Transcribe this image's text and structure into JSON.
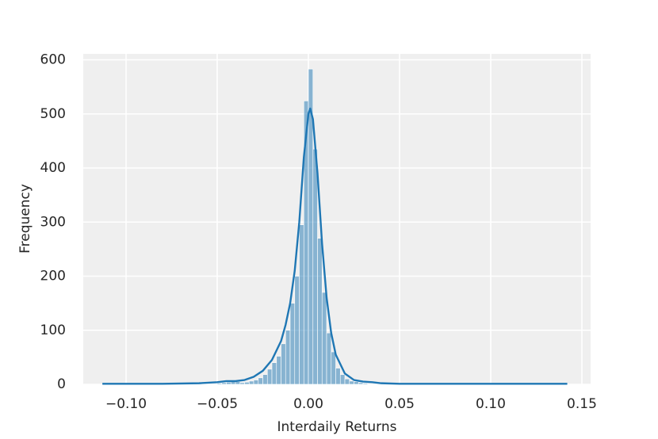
{
  "chart_data": {
    "type": "histogram",
    "xlabel": "Interdaily Returns",
    "ylabel": "Frequency",
    "bins": [
      -0.1125,
      -0.11,
      -0.1075,
      -0.105,
      -0.1025,
      -0.1,
      -0.0975,
      -0.095,
      -0.0925,
      -0.09,
      -0.0875,
      -0.085,
      -0.0825,
      -0.08,
      -0.0775,
      -0.075,
      -0.0725,
      -0.07,
      -0.0675,
      -0.065,
      -0.0625,
      -0.06,
      -0.0575,
      -0.055,
      -0.0525,
      -0.05,
      -0.0475,
      -0.045,
      -0.0425,
      -0.04,
      -0.0375,
      -0.035,
      -0.0325,
      -0.03,
      -0.0275,
      -0.025,
      -0.0225,
      -0.02,
      -0.0175,
      -0.015,
      -0.0125,
      -0.01,
      -0.0075,
      -0.005,
      -0.0025,
      0,
      0.0025,
      0.005,
      0.0075,
      0.01,
      0.0125,
      0.015,
      0.0175,
      0.02,
      0.0225,
      0.025,
      0.0275,
      0.03,
      0.0325,
      0.035,
      0.0375,
      0.04,
      0.0425,
      0.045,
      0.0475,
      0.05,
      0.0525,
      0.055,
      0.0575,
      0.06,
      0.0625,
      0.065,
      0.0675,
      0.07,
      0.0725,
      0.075,
      0.0775,
      0.08,
      0.0825,
      0.085,
      0.0875,
      0.09,
      0.0925,
      0.095,
      0.0975,
      0.1,
      0.1025,
      0.105,
      0.1075,
      0.11,
      0.1125,
      0.115,
      0.1175,
      0.12,
      0.1225,
      0.125,
      0.1275,
      0.13,
      0.1325,
      0.135,
      0.1375,
      0.14,
      0.1425
    ],
    "counts": [
      1,
      0,
      0,
      0,
      0,
      0,
      0,
      0,
      0,
      0,
      0,
      0,
      0,
      0,
      0,
      0,
      0,
      0,
      1,
      0,
      0,
      0,
      0,
      0,
      1,
      2,
      3,
      4,
      6,
      5,
      3,
      4,
      6,
      8,
      12,
      18,
      28,
      40,
      52,
      75,
      100,
      150,
      200,
      295,
      524,
      583,
      435,
      270,
      170,
      95,
      60,
      30,
      18,
      10,
      6,
      5,
      3,
      2,
      1,
      0,
      0,
      0,
      0,
      0,
      0,
      0,
      0,
      0,
      0,
      0,
      1,
      0,
      0,
      0,
      0,
      0,
      0,
      0,
      0,
      0,
      1,
      0,
      0,
      0,
      0,
      0,
      0,
      0,
      0,
      0,
      0,
      0,
      0,
      0,
      0,
      0,
      0,
      0,
      0,
      0,
      0,
      1
    ],
    "color": "#1f77b4",
    "kde": {
      "x": [
        -0.113,
        -0.08,
        -0.06,
        -0.05,
        -0.045,
        -0.04,
        -0.035,
        -0.03,
        -0.025,
        -0.02,
        -0.015,
        -0.0125,
        -0.01,
        -0.0075,
        -0.005,
        -0.0025,
        0,
        0.001,
        0.0025,
        0.005,
        0.0075,
        0.01,
        0.0125,
        0.015,
        0.02,
        0.025,
        0.03,
        0.035,
        0.04,
        0.05,
        0.08,
        0.142
      ],
      "values": [
        1,
        1,
        2,
        4,
        6,
        6,
        8,
        14,
        25,
        45,
        80,
        110,
        150,
        210,
        300,
        420,
        500,
        510,
        490,
        390,
        260,
        160,
        95,
        55,
        20,
        8,
        5,
        4,
        2,
        1,
        1,
        1
      ],
      "color": "#1f77b4"
    },
    "xlim": [
      -0.1235,
      0.1548
    ],
    "ylim": [
      0,
      611
    ],
    "xticks": [
      {
        "value": -0.1,
        "label": "−0.10"
      },
      {
        "value": -0.05,
        "label": "−0.05"
      },
      {
        "value": 0,
        "label": "0.00"
      },
      {
        "value": 0.05,
        "label": "0.05"
      },
      {
        "value": 0.1,
        "label": "0.10"
      },
      {
        "value": 0.15,
        "label": "0.15"
      }
    ],
    "yticks": [
      0,
      100,
      200,
      300,
      400,
      500,
      600
    ],
    "grid": true
  }
}
